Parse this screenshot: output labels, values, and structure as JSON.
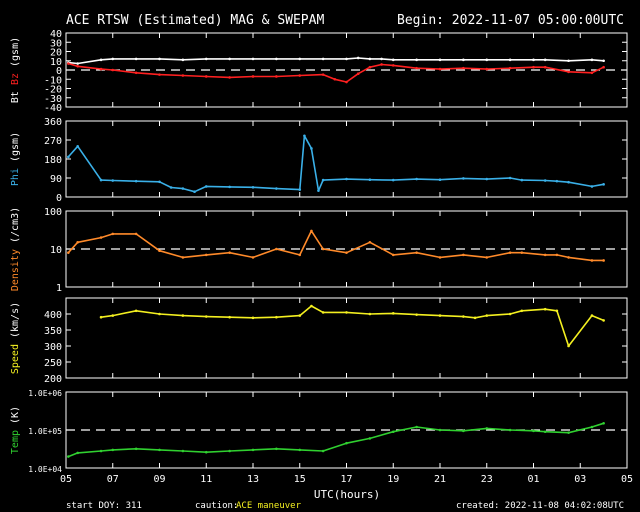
{
  "header": {
    "title": "ACE RTSW (Estimated) MAG & SWEPAM",
    "begin": "Begin: 2022-11-07 05:00:00UTC"
  },
  "footer": {
    "start_doy": "start DOY: 311",
    "caution_label": "caution:",
    "caution_text": "ACE maneuver",
    "created": "created: 2022-11-08 04:02:08UTC"
  },
  "x_axis": {
    "label": "UTC(hours)",
    "ticks": [
      "05",
      "07",
      "09",
      "11",
      "13",
      "15",
      "17",
      "19",
      "21",
      "23",
      "01",
      "03",
      "05"
    ],
    "range_hours": [
      0,
      24
    ]
  },
  "colors": {
    "background": "#000000",
    "axes": "#ffffff",
    "bt": "#ffffff",
    "bz": "#ff2020",
    "phi": "#3ab0e8",
    "density": "#ff8a2a",
    "speed": "#f4f020",
    "temp": "#30d030",
    "caution": "#f4f020"
  },
  "chart_data": [
    {
      "type": "line",
      "ylabel_parts": [
        "Bt",
        "Bz",
        "(gsm)"
      ],
      "ylim": [
        -40,
        40
      ],
      "yticks": [
        "40",
        "30",
        "20",
        "10",
        "0",
        "-10",
        "-20",
        "-30",
        "-40"
      ],
      "reference_line": 0,
      "series": [
        {
          "name": "Bt",
          "color_key": "bt",
          "x": [
            0.1,
            0.5,
            1.5,
            2,
            3,
            4,
            5,
            6,
            7,
            8,
            9,
            10,
            11,
            12,
            12.5,
            13,
            13.5,
            14,
            15,
            16,
            17,
            18,
            19,
            20,
            20.5,
            21.5,
            22.5,
            23
          ],
          "y": [
            8,
            7,
            11,
            12,
            12,
            12,
            11,
            12,
            12,
            12,
            12,
            12,
            12,
            12,
            13,
            12,
            12,
            11,
            11,
            11,
            11,
            11,
            11,
            11,
            11,
            10,
            11,
            10
          ]
        },
        {
          "name": "Bz",
          "color_key": "bz",
          "x": [
            0.1,
            0.5,
            1.5,
            2,
            3,
            4,
            5,
            6,
            7,
            8,
            9,
            10,
            11,
            11.5,
            12,
            12.5,
            13,
            13.5,
            14,
            15,
            16,
            17,
            18,
            19,
            20,
            20.5,
            21.5,
            22.5,
            23
          ],
          "y": [
            7,
            4,
            1,
            0,
            -3,
            -5,
            -6,
            -7,
            -8,
            -7,
            -7,
            -6,
            -5,
            -10,
            -13,
            -4,
            3,
            6,
            5,
            2,
            1,
            2,
            1,
            2,
            3,
            3,
            -2,
            -3,
            3
          ]
        }
      ]
    },
    {
      "type": "line",
      "ylabel_parts": [
        "Phi",
        "(gsm)"
      ],
      "ylim": [
        0,
        360
      ],
      "yticks": [
        "360",
        "270",
        "180",
        "90",
        "0"
      ],
      "series": [
        {
          "name": "Phi",
          "color_key": "phi",
          "x": [
            0.1,
            0.5,
            1.5,
            2,
            3,
            4,
            4.5,
            5,
            5.5,
            6,
            7,
            8,
            9,
            10,
            10.2,
            10.5,
            10.8,
            11,
            12,
            13,
            14,
            15,
            16,
            17,
            18,
            19,
            19.5,
            20.5,
            21,
            21.5,
            22.5,
            23
          ],
          "y": [
            190,
            240,
            80,
            78,
            75,
            72,
            45,
            40,
            25,
            50,
            48,
            46,
            40,
            35,
            290,
            230,
            30,
            80,
            85,
            82,
            80,
            85,
            82,
            88,
            85,
            90,
            80,
            78,
            75,
            70,
            50,
            60
          ]
        }
      ]
    },
    {
      "type": "line",
      "ylabel_parts": [
        "Density",
        "(/cm3)"
      ],
      "yscale": "log",
      "ylim": [
        1,
        100
      ],
      "yticks": [
        "100",
        "10",
        "1"
      ],
      "reference_line": 10,
      "series": [
        {
          "name": "Density",
          "color_key": "density",
          "x": [
            0.1,
            0.5,
            1.5,
            2,
            3,
            4,
            5,
            6,
            7,
            8,
            9,
            10,
            10.5,
            11,
            12,
            13,
            14,
            15,
            16,
            17,
            18,
            19,
            19.5,
            20.5,
            21,
            21.5,
            22.5,
            23
          ],
          "y": [
            8,
            15,
            20,
            25,
            25,
            9,
            6,
            7,
            8,
            6,
            10,
            7,
            30,
            10,
            8,
            15,
            7,
            8,
            6,
            7,
            6,
            8,
            8,
            7,
            7,
            6,
            5,
            5
          ]
        }
      ]
    },
    {
      "type": "line",
      "ylabel_parts": [
        "Speed",
        "(km/s)"
      ],
      "ylim": [
        200,
        450
      ],
      "yticks": [
        "400",
        "350",
        "300",
        "250",
        "200"
      ],
      "series": [
        {
          "name": "Speed",
          "color_key": "speed",
          "x": [
            1.5,
            2,
            3,
            4,
            5,
            6,
            7,
            8,
            9,
            10,
            10.5,
            11,
            12,
            13,
            14,
            15,
            16,
            17,
            17.5,
            18,
            19,
            19.5,
            20.5,
            21,
            21.5,
            22.5,
            23
          ],
          "y": [
            390,
            395,
            410,
            400,
            395,
            392,
            390,
            388,
            390,
            395,
            425,
            405,
            405,
            400,
            402,
            398,
            395,
            392,
            388,
            395,
            400,
            410,
            415,
            410,
            300,
            395,
            380
          ]
        }
      ]
    },
    {
      "type": "line",
      "ylabel_parts": [
        "Temp",
        "(K)"
      ],
      "yscale": "log",
      "ylim": [
        10000,
        1000000
      ],
      "yticks": [
        "1.0E+06",
        "1.0E+05",
        "1.0E+04"
      ],
      "reference_line": 100000,
      "series": [
        {
          "name": "Temp",
          "color_key": "temp",
          "x": [
            0.1,
            0.5,
            1.5,
            2,
            3,
            4,
            5,
            6,
            7,
            8,
            9,
            10,
            11,
            12,
            13,
            14,
            15,
            16,
            17,
            18,
            19,
            20,
            20.5,
            21.5,
            22.5,
            23
          ],
          "y": [
            20000,
            25000,
            28000,
            30000,
            32000,
            30000,
            28000,
            26000,
            28000,
            30000,
            32000,
            30000,
            28000,
            45000,
            60000,
            90000,
            120000,
            100000,
            95000,
            110000,
            100000,
            95000,
            90000,
            85000,
            120000,
            150000
          ]
        }
      ]
    }
  ]
}
